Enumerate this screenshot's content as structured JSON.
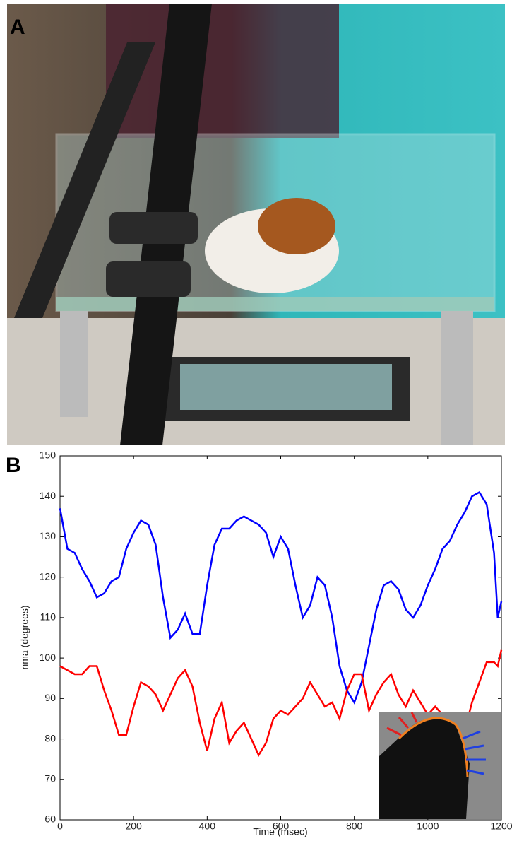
{
  "panel_labels": [
    "A",
    "B"
  ],
  "chart_data": {
    "type": "line",
    "xlabel": "Time (msec)",
    "ylabel": "nma (degrees)",
    "x": [
      0,
      20,
      40,
      60,
      80,
      100,
      120,
      140,
      160,
      180,
      200,
      220,
      240,
      260,
      280,
      300,
      320,
      340,
      360,
      380,
      400,
      420,
      440,
      460,
      480,
      500,
      520,
      540,
      560,
      580,
      600,
      620,
      640,
      660,
      680,
      700,
      720,
      740,
      760,
      780,
      800,
      820,
      840,
      860,
      880,
      900,
      920,
      940,
      960,
      980,
      1000,
      1020,
      1040,
      1060,
      1080,
      1100,
      1120,
      1140,
      1160,
      1180,
      1190,
      1200
    ],
    "series": [
      {
        "color": "#0000ff",
        "values": [
          137,
          127,
          126,
          122,
          119,
          115,
          116,
          119,
          120,
          127,
          131,
          134,
          133,
          128,
          115,
          105,
          107,
          111,
          106,
          106,
          118,
          128,
          132,
          132,
          134,
          135,
          134,
          133,
          131,
          125,
          130,
          127,
          118,
          110,
          113,
          120,
          118,
          110,
          98,
          92,
          89,
          94,
          103,
          112,
          118,
          119,
          117,
          112,
          110,
          113,
          118,
          122,
          127,
          129,
          133,
          136,
          140,
          141,
          138,
          126,
          110,
          114
        ]
      },
      {
        "color": "#ff0000",
        "values": [
          98,
          97,
          96,
          96,
          98,
          98,
          92,
          87,
          81,
          81,
          88,
          94,
          93,
          91,
          87,
          91,
          95,
          97,
          93,
          84,
          77,
          85,
          89,
          79,
          82,
          84,
          80,
          76,
          79,
          85,
          87,
          86,
          88,
          90,
          94,
          91,
          88,
          89,
          85,
          92,
          96,
          96,
          87,
          91,
          94,
          96,
          91,
          88,
          92,
          89,
          86,
          88,
          86,
          82,
          78,
          82,
          89,
          94,
          99,
          99,
          98,
          102
        ]
      }
    ],
    "xlim": [
      0,
      1200
    ],
    "xticks": [
      0,
      200,
      400,
      600,
      800,
      1000,
      1200
    ],
    "ylim": [
      60,
      150
    ],
    "yticks": [
      60,
      70,
      80,
      90,
      100,
      110,
      120,
      130,
      140,
      150
    ]
  }
}
